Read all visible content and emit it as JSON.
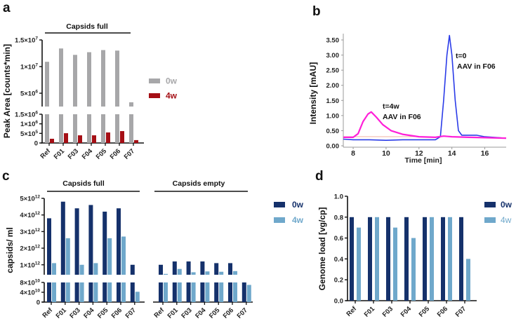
{
  "colors": {
    "gray": "#a7a7a9",
    "red": "#a50f15",
    "navy": "#15316b",
    "light": "#6fa8cb",
    "magenta": "#ff1fd8",
    "blue": "#2a3be8",
    "baseline": "#f0b0a0"
  },
  "chart_data": [
    {
      "panel": "a",
      "type": "bar",
      "group_labels": [
        "Capsids full"
      ],
      "categories": [
        "Ref",
        "F01",
        "F03",
        "F04",
        "F05",
        "F06",
        "F07"
      ],
      "ylabel": "Peak Area [counts*min]",
      "y_axis_break": [
        1500000,
        2500000
      ],
      "ylim": [
        0,
        15000000
      ],
      "ticks": [
        {
          "value": 15000000,
          "label": "1.5×10",
          "exp": "7"
        },
        {
          "value": 10000000,
          "label": "1×10",
          "exp": "7"
        },
        {
          "value": 5000000,
          "label": "5×10",
          "exp": "6"
        },
        {
          "value": 1500000,
          "label": "1.5×10",
          "exp": "6"
        },
        {
          "value": 1000000,
          "label": "1×10",
          "exp": "6"
        },
        {
          "value": 500000,
          "label": "5×10",
          "exp": "5"
        },
        {
          "value": 0,
          "label": "0",
          "exp": ""
        }
      ],
      "series": [
        {
          "name": "0w",
          "color_key": "gray",
          "values": [
            10900000,
            13400000,
            12200000,
            12700000,
            13100000,
            13000000,
            3300000
          ]
        },
        {
          "name": "4w",
          "color_key": "red",
          "values": [
            220000,
            510000,
            400000,
            400000,
            550000,
            620000,
            150000
          ]
        }
      ],
      "legend": "right"
    },
    {
      "panel": "b",
      "type": "line",
      "xlabel": "Time [min]",
      "ylabel": "Intensity [mAU]",
      "xlim": [
        7.4,
        17.3
      ],
      "ylim": [
        0,
        3.6
      ],
      "xticks": [
        8,
        10,
        12,
        14,
        16
      ],
      "yticks": [
        "0.00",
        "0.50",
        "1.00",
        "1.50",
        "2.00",
        "2.50",
        "3.00",
        "3.50"
      ],
      "annotations": [
        {
          "line1": "t=0",
          "line2": "AAV in F06"
        },
        {
          "line1": "t=4w",
          "line2": "AAV in F06"
        }
      ],
      "series": [
        {
          "name": "t=0",
          "color_key": "blue",
          "x": [
            7.4,
            8,
            9,
            10,
            11,
            12,
            13,
            13.3,
            13.5,
            13.7,
            13.85,
            14.0,
            14.2,
            14.4,
            14.6,
            15.5,
            16,
            17.3
          ],
          "y": [
            0.22,
            0.2,
            0.2,
            0.18,
            0.2,
            0.2,
            0.2,
            0.3,
            1.5,
            3.0,
            3.65,
            3.0,
            1.5,
            0.5,
            0.35,
            0.35,
            0.3,
            0.25
          ]
        },
        {
          "name": "t=4w",
          "color_key": "magenta",
          "x": [
            7.4,
            8,
            8.3,
            8.6,
            8.9,
            9.1,
            9.4,
            9.8,
            10.3,
            11,
            12,
            13,
            13.5,
            14,
            15,
            16,
            17.3
          ],
          "y": [
            0.28,
            0.28,
            0.4,
            0.8,
            1.05,
            1.12,
            0.95,
            0.7,
            0.5,
            0.38,
            0.3,
            0.28,
            0.32,
            0.3,
            0.28,
            0.27,
            0.25
          ]
        }
      ]
    },
    {
      "panel": "c",
      "type": "bar",
      "group_labels": [
        "Capsids full",
        "Capsids empty"
      ],
      "categories": [
        "Ref",
        "F01",
        "F03",
        "F04",
        "F05",
        "F06",
        "F07"
      ],
      "ylabel": "capsids/ ml",
      "y_axis_break": [
        80000000000,
        400000000000
      ],
      "ylim": [
        0,
        5000000000000
      ],
      "ticks": [
        {
          "value": 5000000000000,
          "label": "5×10",
          "exp": "12"
        },
        {
          "value": 4000000000000,
          "label": "4×10",
          "exp": "12"
        },
        {
          "value": 3000000000000,
          "label": "3×10",
          "exp": "12"
        },
        {
          "value": 2000000000000,
          "label": "2×10",
          "exp": "12"
        },
        {
          "value": 1000000000000,
          "label": "1×10",
          "exp": "12"
        },
        {
          "value": 80000000000,
          "label": "8×10",
          "exp": "10"
        },
        {
          "value": 40000000000,
          "label": "4×10",
          "exp": "10"
        },
        {
          "value": 0,
          "label": "0",
          "exp": ""
        }
      ],
      "groups": [
        {
          "name": "Capsids full",
          "series": [
            {
              "name": "0w",
              "color_key": "navy",
              "values": [
                3800000000000,
                4800000000000,
                4400000000000,
                4600000000000,
                4200000000000,
                4400000000000,
                1000000000000
              ]
            },
            {
              "name": "4w",
              "color_key": "light",
              "values": [
                1100000000000,
                2600000000000,
                1000000000000,
                1100000000000,
                2600000000000,
                2700000000000,
                42000000000
              ]
            }
          ]
        },
        {
          "name": "Capsids empty",
          "series": [
            {
              "name": "0w",
              "color_key": "navy",
              "values": [
                1000000000000,
                1200000000000,
                1200000000000,
                1200000000000,
                1100000000000,
                1100000000000,
                80000000000
              ]
            },
            {
              "name": "4w",
              "color_key": "light",
              "values": [
                450000000000,
                750000000000,
                550000000000,
                600000000000,
                580000000000,
                620000000000,
                70000000000
              ]
            }
          ]
        }
      ],
      "legend": "right"
    },
    {
      "panel": "d",
      "type": "bar",
      "categories": [
        "Ref",
        "F01",
        "F03",
        "F04",
        "F05",
        "F06",
        "F07"
      ],
      "ylabel": "Genome load [vg/cp]",
      "ylim": [
        0,
        1.0
      ],
      "ticks": [
        {
          "value": 1.0,
          "label": "1.0",
          "exp": ""
        },
        {
          "value": 0.8,
          "label": "0.8",
          "exp": ""
        },
        {
          "value": 0.6,
          "label": "0.6",
          "exp": ""
        },
        {
          "value": 0.4,
          "label": "0.4",
          "exp": ""
        },
        {
          "value": 0.2,
          "label": "0.2",
          "exp": ""
        },
        {
          "value": 0,
          "label": "0.0",
          "exp": ""
        }
      ],
      "series": [
        {
          "name": "0w",
          "color_key": "navy",
          "values": [
            0.8,
            0.8,
            0.8,
            0.8,
            0.8,
            0.8,
            0.8
          ]
        },
        {
          "name": "4w",
          "color_key": "light",
          "values": [
            0.7,
            0.8,
            0.7,
            0.6,
            0.8,
            0.8,
            0.4
          ]
        }
      ],
      "legend": "right"
    }
  ],
  "panel_labels": [
    "a",
    "b",
    "c",
    "d"
  ]
}
